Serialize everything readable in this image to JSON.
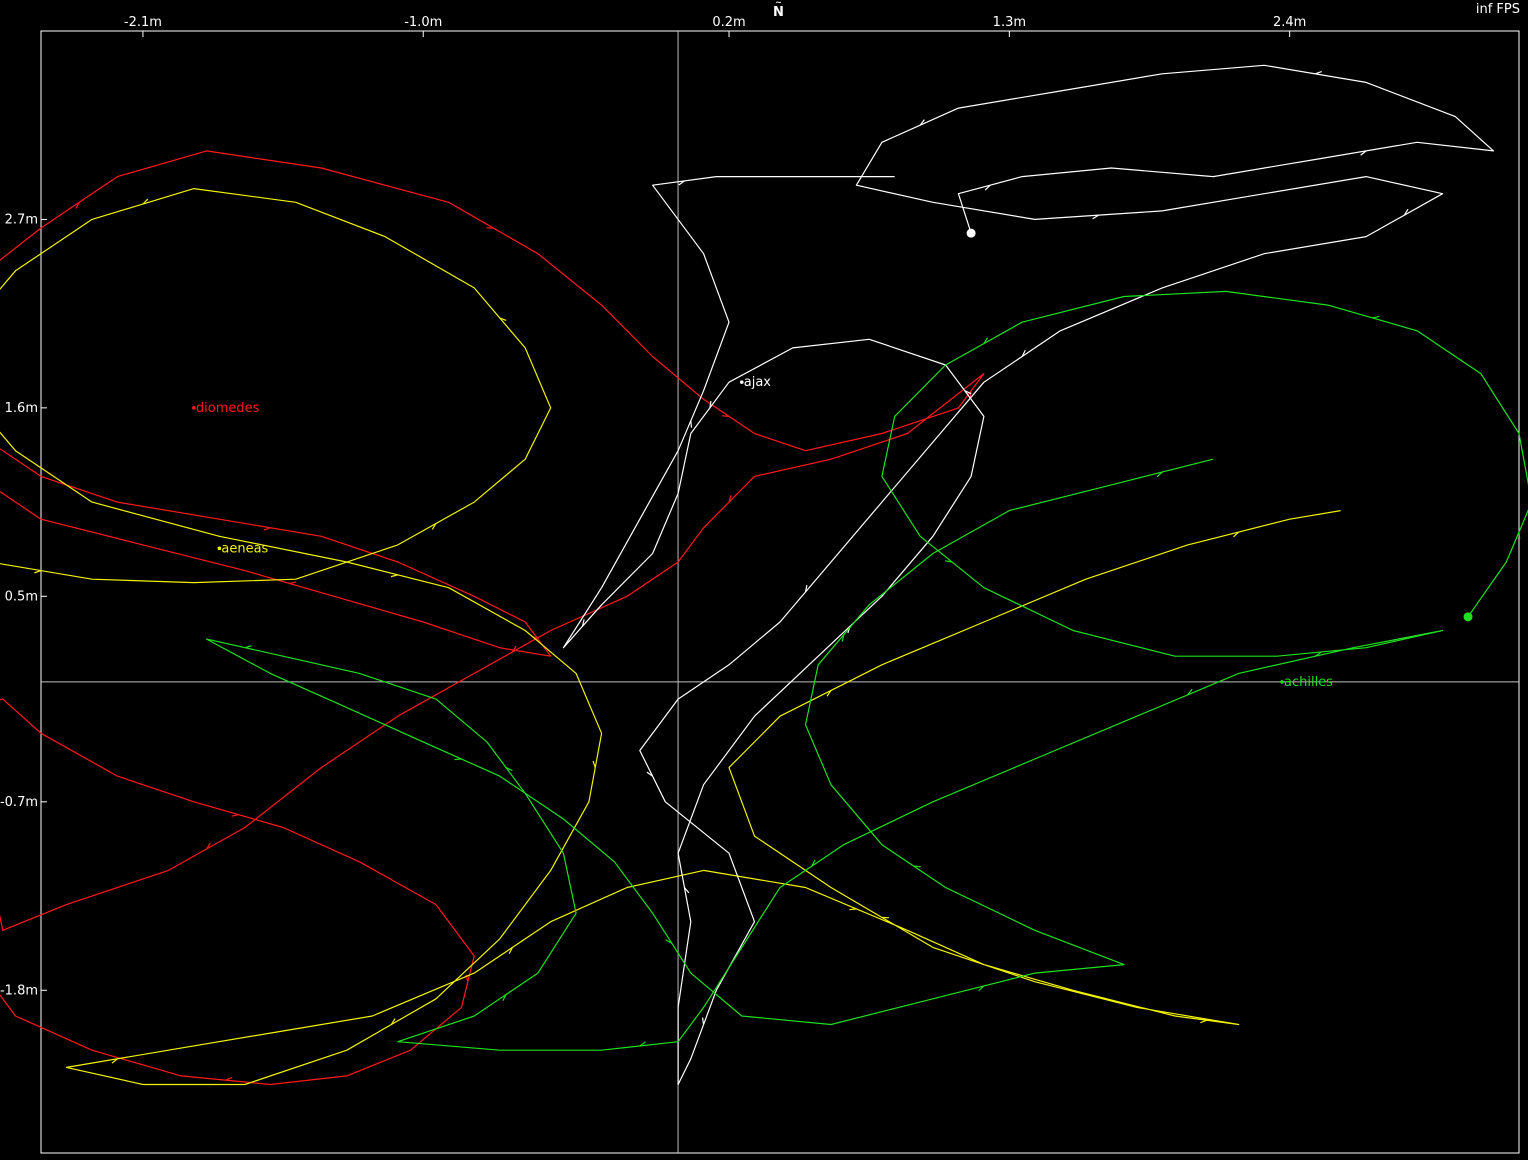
{
  "hud": {
    "fps": "inf FPS",
    "north_label": "N",
    "north_arrow": "~"
  },
  "chart_data": {
    "type": "line",
    "xlim": [
      -2.5,
      3.3
    ],
    "ylim": [
      -2.75,
      3.8
    ],
    "x_ticks": [
      {
        "value": -2.1,
        "label": "-2.1m"
      },
      {
        "value": -1.0,
        "label": "-1.0m"
      },
      {
        "value": 0.2,
        "label": "0.2m"
      },
      {
        "value": 1.3,
        "label": "1.3m"
      },
      {
        "value": 2.4,
        "label": "2.4m"
      }
    ],
    "y_ticks": [
      {
        "value": 2.7,
        "label": "2.7m"
      },
      {
        "value": 1.6,
        "label": "1.6m"
      },
      {
        "value": 0.5,
        "label": "0.5m"
      },
      {
        "value": -0.7,
        "label": "-0.7m"
      },
      {
        "value": -1.8,
        "label": "-1.8m"
      }
    ],
    "crosshair": {
      "x": 0.0,
      "y": 0.0
    },
    "series": [
      {
        "name": "diomedes",
        "color": "#ff1a1a",
        "label_at": [
          -1.9,
          1.6
        ],
        "current": [
          -2.88,
          2.0
        ],
        "path": [
          [
            -2.85,
            2.0
          ],
          [
            -2.8,
            1.7
          ],
          [
            -2.7,
            1.4
          ],
          [
            -2.5,
            1.2
          ],
          [
            -2.2,
            1.05
          ],
          [
            -1.8,
            0.95
          ],
          [
            -1.4,
            0.85
          ],
          [
            -1.1,
            0.7
          ],
          [
            -0.8,
            0.5
          ],
          [
            -0.6,
            0.35
          ],
          [
            -0.5,
            0.15
          ],
          [
            -0.7,
            0.2
          ],
          [
            -1.0,
            0.35
          ],
          [
            -1.35,
            0.5
          ],
          [
            -1.7,
            0.65
          ],
          [
            -2.1,
            0.8
          ],
          [
            -2.5,
            0.95
          ],
          [
            -2.75,
            1.2
          ],
          [
            -2.8,
            1.5
          ],
          [
            -2.9,
            1.9
          ],
          [
            -2.8,
            2.3
          ],
          [
            -2.5,
            2.65
          ],
          [
            -2.2,
            2.95
          ],
          [
            -1.85,
            3.1
          ],
          [
            -1.4,
            3.0
          ],
          [
            -0.9,
            2.8
          ],
          [
            -0.55,
            2.5
          ],
          [
            -0.3,
            2.2
          ],
          [
            -0.1,
            1.9
          ],
          [
            0.1,
            1.65
          ],
          [
            0.3,
            1.45
          ],
          [
            0.5,
            1.35
          ],
          [
            0.8,
            1.45
          ],
          [
            1.1,
            1.6
          ],
          [
            1.2,
            1.8
          ],
          [
            0.9,
            1.45
          ],
          [
            0.6,
            1.3
          ],
          [
            0.3,
            1.2
          ],
          [
            0.1,
            0.9
          ],
          [
            0.0,
            0.7
          ],
          [
            -0.2,
            0.5
          ],
          [
            -0.5,
            0.3
          ],
          [
            -0.8,
            0.05
          ],
          [
            -1.1,
            -0.2
          ],
          [
            -1.4,
            -0.5
          ],
          [
            -1.7,
            -0.85
          ],
          [
            -2.0,
            -1.1
          ],
          [
            -2.4,
            -1.3
          ],
          [
            -2.65,
            -1.45
          ],
          [
            -2.7,
            -1.1
          ],
          [
            -2.75,
            -0.75
          ],
          [
            -2.85,
            -0.5
          ],
          [
            -2.85,
            -0.3
          ],
          [
            -2.8,
            -0.15
          ],
          [
            -2.65,
            -0.1
          ],
          [
            -2.5,
            -0.3
          ],
          [
            -2.2,
            -0.55
          ],
          [
            -1.9,
            -0.7
          ],
          [
            -1.55,
            -0.85
          ],
          [
            -1.25,
            -1.05
          ],
          [
            -0.95,
            -1.3
          ],
          [
            -0.8,
            -1.6
          ],
          [
            -0.85,
            -1.9
          ],
          [
            -1.05,
            -2.15
          ],
          [
            -1.3,
            -2.3
          ],
          [
            -1.6,
            -2.35
          ],
          [
            -1.95,
            -2.3
          ],
          [
            -2.3,
            -2.15
          ],
          [
            -2.6,
            -1.95
          ],
          [
            -2.75,
            -1.65
          ]
        ]
      },
      {
        "name": "aeneas",
        "color": "#f2f200",
        "label_at": [
          -1.8,
          0.78
        ],
        "current": [
          -2.95,
          0.85
        ],
        "path": [
          [
            -2.95,
            0.85
          ],
          [
            -2.7,
            0.7
          ],
          [
            -2.3,
            0.6
          ],
          [
            -1.9,
            0.58
          ],
          [
            -1.5,
            0.6
          ],
          [
            -1.1,
            0.8
          ],
          [
            -0.8,
            1.05
          ],
          [
            -0.6,
            1.3
          ],
          [
            -0.5,
            1.6
          ],
          [
            -0.6,
            1.95
          ],
          [
            -0.8,
            2.3
          ],
          [
            -1.15,
            2.6
          ],
          [
            -1.5,
            2.8
          ],
          [
            -1.9,
            2.88
          ],
          [
            -2.3,
            2.7
          ],
          [
            -2.6,
            2.4
          ],
          [
            -2.8,
            2.05
          ],
          [
            -2.8,
            1.7
          ],
          [
            -2.6,
            1.35
          ],
          [
            -2.3,
            1.05
          ],
          [
            -1.8,
            0.85
          ],
          [
            -1.3,
            0.7
          ],
          [
            -0.9,
            0.55
          ],
          [
            -0.6,
            0.3
          ],
          [
            -0.4,
            0.05
          ],
          [
            -0.3,
            -0.3
          ],
          [
            -0.35,
            -0.7
          ],
          [
            -0.5,
            -1.1
          ],
          [
            -0.7,
            -1.5
          ],
          [
            -0.95,
            -1.85
          ],
          [
            -1.3,
            -2.15
          ],
          [
            -1.7,
            -2.35
          ],
          [
            -2.1,
            -2.35
          ],
          [
            -2.4,
            -2.25
          ],
          [
            -2.0,
            -2.15
          ],
          [
            -1.6,
            -2.05
          ],
          [
            -1.2,
            -1.95
          ],
          [
            -0.8,
            -1.7
          ],
          [
            -0.5,
            -1.4
          ],
          [
            -0.2,
            -1.2
          ],
          [
            0.1,
            -1.1
          ],
          [
            0.5,
            -1.2
          ],
          [
            0.9,
            -1.45
          ],
          [
            1.2,
            -1.65
          ],
          [
            1.55,
            -1.8
          ],
          [
            1.95,
            -1.95
          ],
          [
            2.2,
            -2.0
          ],
          [
            1.8,
            -1.9
          ],
          [
            1.4,
            -1.75
          ],
          [
            1.0,
            -1.55
          ],
          [
            0.6,
            -1.2
          ],
          [
            0.3,
            -0.9
          ],
          [
            0.2,
            -0.5
          ],
          [
            0.4,
            -0.2
          ],
          [
            0.8,
            0.1
          ],
          [
            1.2,
            0.35
          ],
          [
            1.6,
            0.6
          ],
          [
            2.0,
            0.8
          ],
          [
            2.4,
            0.95
          ],
          [
            2.6,
            1.0
          ]
        ]
      },
      {
        "name": "ajax",
        "color": "#ffffff",
        "label_at": [
          0.25,
          1.75
        ],
        "current": [
          1.15,
          2.62
        ],
        "path": [
          [
            1.15,
            2.62
          ],
          [
            1.1,
            2.85
          ],
          [
            1.35,
            2.95
          ],
          [
            1.7,
            3.0
          ],
          [
            2.1,
            2.95
          ],
          [
            2.5,
            3.05
          ],
          [
            2.9,
            3.15
          ],
          [
            3.2,
            3.1
          ],
          [
            3.05,
            3.3
          ],
          [
            2.7,
            3.5
          ],
          [
            2.3,
            3.6
          ],
          [
            1.9,
            3.55
          ],
          [
            1.5,
            3.45
          ],
          [
            1.1,
            3.35
          ],
          [
            0.8,
            3.15
          ],
          [
            0.7,
            2.9
          ],
          [
            1.0,
            2.8
          ],
          [
            1.4,
            2.7
          ],
          [
            1.9,
            2.75
          ],
          [
            2.3,
            2.85
          ],
          [
            2.7,
            2.95
          ],
          [
            3.0,
            2.85
          ],
          [
            2.7,
            2.6
          ],
          [
            2.3,
            2.5
          ],
          [
            1.9,
            2.3
          ],
          [
            1.5,
            2.05
          ],
          [
            1.2,
            1.75
          ],
          [
            1.0,
            1.4
          ],
          [
            0.8,
            1.05
          ],
          [
            0.6,
            0.7
          ],
          [
            0.4,
            0.35
          ],
          [
            0.2,
            0.1
          ],
          [
            0.0,
            -0.1
          ],
          [
            -0.15,
            -0.4
          ],
          [
            -0.05,
            -0.7
          ],
          [
            0.2,
            -1.0
          ],
          [
            0.3,
            -1.4
          ],
          [
            0.15,
            -1.8
          ],
          [
            0.05,
            -2.2
          ],
          [
            0.0,
            -2.35
          ],
          [
            0.0,
            -1.9
          ],
          [
            0.05,
            -1.4
          ],
          [
            0.0,
            -1.0
          ],
          [
            0.1,
            -0.6
          ],
          [
            0.3,
            -0.2
          ],
          [
            0.55,
            0.15
          ],
          [
            0.8,
            0.5
          ],
          [
            1.0,
            0.85
          ],
          [
            1.15,
            1.2
          ],
          [
            1.2,
            1.55
          ],
          [
            1.05,
            1.85
          ],
          [
            0.75,
            2.0
          ],
          [
            0.45,
            1.95
          ],
          [
            0.2,
            1.75
          ],
          [
            0.05,
            1.45
          ],
          [
            0.0,
            1.1
          ],
          [
            -0.1,
            0.75
          ],
          [
            -0.3,
            0.45
          ],
          [
            -0.45,
            0.2
          ],
          [
            -0.3,
            0.55
          ],
          [
            -0.15,
            0.95
          ],
          [
            0.0,
            1.35
          ],
          [
            0.1,
            1.7
          ],
          [
            0.2,
            2.1
          ],
          [
            0.1,
            2.5
          ],
          [
            -0.1,
            2.9
          ],
          [
            0.15,
            2.95
          ],
          [
            0.5,
            2.95
          ],
          [
            0.85,
            2.95
          ]
        ]
      },
      {
        "name": "achilles",
        "color": "#1fe01f",
        "label_at": [
          2.37,
          0.0
        ],
        "current": [
          3.1,
          0.38
        ],
        "path": [
          [
            3.1,
            0.38
          ],
          [
            3.25,
            0.7
          ],
          [
            3.35,
            1.05
          ],
          [
            3.3,
            1.45
          ],
          [
            3.15,
            1.8
          ],
          [
            2.9,
            2.05
          ],
          [
            2.55,
            2.2
          ],
          [
            2.15,
            2.28
          ],
          [
            1.75,
            2.25
          ],
          [
            1.35,
            2.1
          ],
          [
            1.05,
            1.85
          ],
          [
            0.85,
            1.55
          ],
          [
            0.8,
            1.2
          ],
          [
            0.95,
            0.85
          ],
          [
            1.2,
            0.55
          ],
          [
            1.55,
            0.3
          ],
          [
            1.95,
            0.15
          ],
          [
            2.35,
            0.15
          ],
          [
            2.7,
            0.2
          ],
          [
            3.0,
            0.3
          ],
          [
            2.65,
            0.2
          ],
          [
            2.2,
            0.05
          ],
          [
            1.8,
            -0.2
          ],
          [
            1.4,
            -0.45
          ],
          [
            1.0,
            -0.7
          ],
          [
            0.65,
            -0.95
          ],
          [
            0.4,
            -1.2
          ],
          [
            0.25,
            -1.55
          ],
          [
            0.1,
            -1.9
          ],
          [
            0.0,
            -2.1
          ],
          [
            -0.3,
            -2.15
          ],
          [
            -0.7,
            -2.15
          ],
          [
            -1.1,
            -2.1
          ],
          [
            -0.8,
            -1.95
          ],
          [
            -0.55,
            -1.7
          ],
          [
            -0.4,
            -1.35
          ],
          [
            -0.45,
            -1.0
          ],
          [
            -0.6,
            -0.65
          ],
          [
            -0.75,
            -0.35
          ],
          [
            -0.95,
            -0.1
          ],
          [
            -1.25,
            0.05
          ],
          [
            -1.55,
            0.15
          ],
          [
            -1.85,
            0.25
          ],
          [
            -1.6,
            0.05
          ],
          [
            -1.3,
            -0.15
          ],
          [
            -1.0,
            -0.35
          ],
          [
            -0.7,
            -0.55
          ],
          [
            -0.45,
            -0.8
          ],
          [
            -0.25,
            -1.05
          ],
          [
            -0.1,
            -1.35
          ],
          [
            0.05,
            -1.7
          ],
          [
            0.25,
            -1.95
          ],
          [
            0.6,
            -2.0
          ],
          [
            1.0,
            -1.85
          ],
          [
            1.4,
            -1.7
          ],
          [
            1.75,
            -1.65
          ],
          [
            1.4,
            -1.45
          ],
          [
            1.05,
            -1.2
          ],
          [
            0.8,
            -0.95
          ],
          [
            0.6,
            -0.6
          ],
          [
            0.5,
            -0.25
          ],
          [
            0.55,
            0.1
          ],
          [
            0.75,
            0.45
          ],
          [
            1.0,
            0.75
          ],
          [
            1.3,
            1.0
          ],
          [
            1.7,
            1.15
          ],
          [
            2.1,
            1.3
          ]
        ]
      }
    ]
  }
}
